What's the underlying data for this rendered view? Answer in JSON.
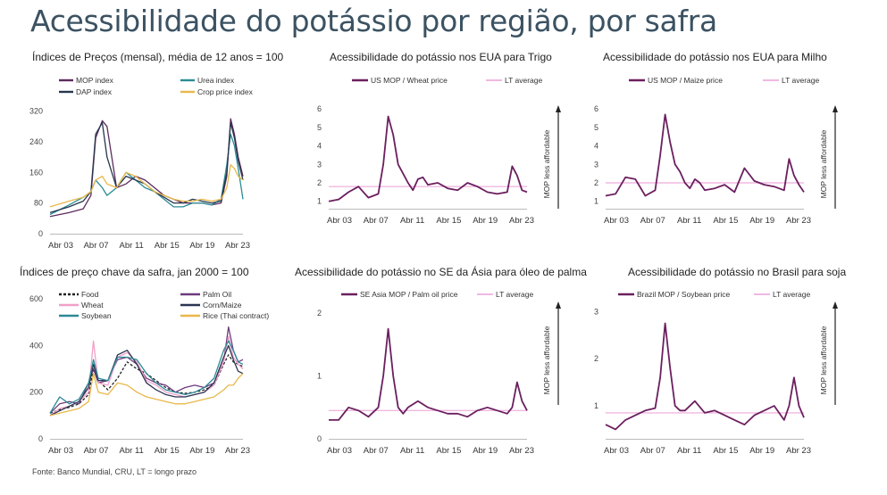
{
  "page": {
    "title": "Acessibilidade do potássio por região, por safra",
    "source": "Fonte: Banco Mundial, CRU, LT = longo prazo"
  },
  "chart_data": [
    {
      "id": "c1",
      "type": "line",
      "title": "Índices de Preços (mensal), média de 12 anos = 100",
      "x_ticks": [
        "Abr 03",
        "Abr 07",
        "Abr 11",
        "Abr 15",
        "Abr 19",
        "Abr 23"
      ],
      "y_ticks": [
        "0",
        "80",
        "160",
        "240",
        "320"
      ],
      "ylim": [
        0,
        340
      ],
      "grid": false,
      "x": [
        0,
        2,
        3.5,
        4.3,
        4.8,
        5.5,
        6,
        7,
        8,
        9,
        10,
        11,
        12,
        13,
        14,
        15,
        16,
        17,
        18,
        18.6,
        19,
        19.4,
        19.8,
        20.3
      ],
      "series": [
        {
          "name": "MOP index",
          "color": "#5c2a5e",
          "values": [
            45,
            55,
            65,
            100,
            250,
            295,
            280,
            120,
            130,
            150,
            140,
            120,
            100,
            90,
            80,
            80,
            80,
            75,
            80,
            150,
            300,
            260,
            200,
            150
          ]
        },
        {
          "name": "Urea index",
          "color": "#2a8c96",
          "values": [
            50,
            75,
            95,
            110,
            140,
            120,
            100,
            120,
            160,
            140,
            120,
            110,
            90,
            70,
            70,
            80,
            80,
            75,
            90,
            180,
            260,
            230,
            170,
            90
          ]
        },
        {
          "name": "DAP index",
          "color": "#27374d",
          "values": [
            55,
            70,
            85,
            110,
            260,
            290,
            200,
            120,
            150,
            140,
            130,
            110,
            95,
            80,
            80,
            90,
            85,
            80,
            85,
            160,
            290,
            250,
            190,
            140
          ]
        },
        {
          "name": "Crop price index",
          "color": "#e8b84a",
          "values": [
            70,
            85,
            95,
            110,
            140,
            150,
            130,
            120,
            160,
            150,
            130,
            110,
            100,
            90,
            85,
            85,
            90,
            85,
            90,
            120,
            180,
            170,
            150,
            140
          ]
        }
      ]
    },
    {
      "id": "c2",
      "type": "line",
      "title": "Acessibilidade do potássio nos EUA para Trigo",
      "x_ticks": [
        "Abr 03",
        "Abr 07",
        "Abr 11",
        "Abr 15",
        "Abr 19",
        "Abr 23"
      ],
      "y_ticks": [
        "1",
        "2",
        "3",
        "4",
        "5",
        "6"
      ],
      "ylim": [
        0.6,
        6.3
      ],
      "grid": false,
      "side_label": "MOP less affordable",
      "x": [
        0,
        1,
        2,
        3,
        4,
        5,
        5.5,
        6,
        6.5,
        7,
        7.5,
        8,
        8.5,
        9,
        9.5,
        10,
        11,
        12,
        13,
        14,
        15,
        16,
        17,
        18,
        18.5,
        19,
        19.5,
        20
      ],
      "series": [
        {
          "name": "US MOP / Wheat price",
          "color": "#6b1f5f",
          "values": [
            1.0,
            1.1,
            1.5,
            1.8,
            1.2,
            1.4,
            3.0,
            5.6,
            4.6,
            3.0,
            2.5,
            2.0,
            1.6,
            2.2,
            2.3,
            1.9,
            2.0,
            1.7,
            1.6,
            2.0,
            1.8,
            1.5,
            1.4,
            1.5,
            2.9,
            2.4,
            1.6,
            1.5
          ]
        },
        {
          "name": "LT average",
          "color": "#f0b8e0",
          "values": [
            1.8,
            1.8,
            1.8,
            1.8,
            1.8,
            1.8,
            1.8,
            1.8,
            1.8,
            1.8,
            1.8,
            1.8,
            1.8,
            1.8,
            1.8,
            1.8,
            1.8,
            1.8,
            1.8,
            1.8,
            1.8,
            1.8,
            1.8,
            1.8,
            1.8,
            1.8,
            1.8,
            1.8
          ]
        }
      ]
    },
    {
      "id": "c3",
      "type": "line",
      "title": "Acessibilidade do potássio nos EUA para Milho",
      "x_ticks": [
        "Abr 03",
        "Abr 07",
        "Abr 11",
        "Abr 15",
        "Abr 19",
        "Abr 23"
      ],
      "y_ticks": [
        "1",
        "2",
        "3",
        "4",
        "5",
        "6"
      ],
      "ylim": [
        0.6,
        6.3
      ],
      "grid": false,
      "side_label": "MOP less affordable",
      "x": [
        0,
        1,
        2,
        3,
        4,
        5,
        5.5,
        6,
        6.5,
        7,
        7.5,
        8,
        8.5,
        9,
        9.5,
        10,
        11,
        12,
        13,
        14,
        15,
        16,
        17,
        18,
        18.5,
        19,
        19.5,
        20
      ],
      "series": [
        {
          "name": "US MOP / Maize price",
          "color": "#6b1f5f",
          "values": [
            1.3,
            1.4,
            2.3,
            2.2,
            1.3,
            1.6,
            3.5,
            5.7,
            4.2,
            3.0,
            2.6,
            2.0,
            1.7,
            2.2,
            2.0,
            1.6,
            1.7,
            1.9,
            1.5,
            2.8,
            2.1,
            1.9,
            1.8,
            1.6,
            3.3,
            2.4,
            1.9,
            1.5
          ]
        },
        {
          "name": "LT average",
          "color": "#f0b8e0",
          "values": [
            2.0,
            2.0,
            2.0,
            2.0,
            2.0,
            2.0,
            2.0,
            2.0,
            2.0,
            2.0,
            2.0,
            2.0,
            2.0,
            2.0,
            2.0,
            2.0,
            2.0,
            2.0,
            2.0,
            2.0,
            2.0,
            2.0,
            2.0,
            2.0,
            2.0,
            2.0,
            2.0,
            2.0
          ]
        }
      ]
    },
    {
      "id": "c4",
      "type": "line",
      "title": "Índices de preço chave da safra, jan 2000 = 100",
      "x_ticks": [
        "Abr 03",
        "Abr 07",
        "Abr 11",
        "Abr 15",
        "Abr 19",
        "Abr 23"
      ],
      "y_ticks": [
        "0",
        "200",
        "400",
        "600"
      ],
      "ylim": [
        0,
        620
      ],
      "grid": false,
      "x": [
        0,
        1,
        2,
        3,
        4,
        4.5,
        5,
        6,
        7,
        8,
        9,
        10,
        11,
        12,
        13,
        14,
        15,
        16,
        17,
        18,
        18.5,
        19,
        19.5,
        20
      ],
      "series": [
        {
          "name": "Food",
          "color": "#222222",
          "values": [
            110,
            125,
            135,
            150,
            190,
            300,
            250,
            210,
            260,
            330,
            300,
            280,
            250,
            220,
            200,
            195,
            200,
            210,
            230,
            320,
            360,
            330,
            320,
            310
          ]
        },
        {
          "name": "Palm Oil",
          "color": "#6f3a7e",
          "values": [
            110,
            150,
            160,
            150,
            240,
            300,
            240,
            250,
            340,
            350,
            320,
            260,
            240,
            230,
            200,
            220,
            230,
            220,
            240,
            330,
            480,
            380,
            330,
            340
          ]
        },
        {
          "name": "Wheat",
          "color": "#f0a0c8",
          "values": [
            100,
            130,
            140,
            160,
            200,
            420,
            240,
            230,
            350,
            370,
            330,
            250,
            230,
            200,
            190,
            180,
            190,
            200,
            230,
            330,
            440,
            350,
            320,
            300
          ]
        },
        {
          "name": "Corn/Maize",
          "color": "#2b3552",
          "values": [
            100,
            120,
            140,
            160,
            220,
            320,
            250,
            250,
            360,
            380,
            320,
            240,
            210,
            190,
            180,
            180,
            190,
            200,
            240,
            350,
            400,
            340,
            290,
            280
          ]
        },
        {
          "name": "Soybean",
          "color": "#2e8a96",
          "values": [
            110,
            180,
            150,
            170,
            240,
            340,
            260,
            250,
            350,
            350,
            340,
            280,
            240,
            210,
            200,
            190,
            200,
            220,
            260,
            380,
            420,
            380,
            330,
            320
          ]
        },
        {
          "name": "Rice (Thai contract)",
          "color": "#e8b84a",
          "values": [
            100,
            110,
            120,
            130,
            160,
            280,
            200,
            190,
            240,
            230,
            200,
            180,
            170,
            160,
            150,
            150,
            160,
            170,
            180,
            210,
            230,
            230,
            260,
            280
          ]
        }
      ]
    },
    {
      "id": "c5",
      "type": "line",
      "title": "Acessibilidade do potássio no SE da Ásia para óleo de palma",
      "x_ticks": [
        "Abr 03",
        "Abr 07",
        "Abr 11",
        "Abr 15",
        "Abr 19",
        "Abr 23"
      ],
      "y_ticks": [
        "0",
        "1",
        "2"
      ],
      "ylim": [
        0,
        2.1
      ],
      "grid": false,
      "side_label": "MOP less affordable",
      "x": [
        0,
        1,
        2,
        3,
        4,
        5,
        5.5,
        6,
        6.5,
        7,
        7.5,
        8,
        9,
        10,
        11,
        12,
        13,
        14,
        15,
        16,
        17,
        18,
        18.5,
        19,
        19.5,
        20
      ],
      "series": [
        {
          "name": "SE Asia MOP / Palm oil price",
          "color": "#6b1f5f",
          "values": [
            0.3,
            0.3,
            0.5,
            0.45,
            0.35,
            0.5,
            1.0,
            1.75,
            1.0,
            0.5,
            0.4,
            0.5,
            0.6,
            0.5,
            0.45,
            0.4,
            0.4,
            0.35,
            0.45,
            0.5,
            0.45,
            0.4,
            0.5,
            0.9,
            0.6,
            0.45
          ]
        },
        {
          "name": "LT average",
          "color": "#f0b8e0",
          "values": [
            0.45,
            0.45,
            0.45,
            0.45,
            0.45,
            0.45,
            0.45,
            0.45,
            0.45,
            0.45,
            0.45,
            0.45,
            0.45,
            0.45,
            0.45,
            0.45,
            0.45,
            0.45,
            0.45,
            0.45,
            0.45,
            0.45,
            0.45,
            0.45,
            0.45,
            0.45
          ]
        }
      ]
    },
    {
      "id": "c6",
      "type": "line",
      "title": "Acessibilidade do potássio no Brasil para soja",
      "x_ticks": [
        "Abr 03",
        "Abr 07",
        "Abr 11",
        "Abr 15",
        "Abr 19",
        "Abr 23"
      ],
      "y_ticks": [
        "1",
        "2",
        "3"
      ],
      "ylim": [
        0.3,
        3.1
      ],
      "grid": false,
      "side_label": "MOP less affordable",
      "x": [
        0,
        1,
        2,
        3,
        4,
        5,
        5.5,
        6,
        6.5,
        7,
        7.5,
        8,
        9,
        10,
        11,
        12,
        13,
        14,
        15,
        16,
        17,
        18,
        18.5,
        19,
        19.5,
        20
      ],
      "series": [
        {
          "name": "Brazil MOP / Soybean price",
          "color": "#6b1f5f",
          "values": [
            0.6,
            0.5,
            0.7,
            0.8,
            0.9,
            0.95,
            1.6,
            2.75,
            1.8,
            1.0,
            0.9,
            0.9,
            1.1,
            0.85,
            0.9,
            0.8,
            0.7,
            0.6,
            0.8,
            0.9,
            1.0,
            0.7,
            1.0,
            1.6,
            1.0,
            0.75
          ]
        },
        {
          "name": "LT average",
          "color": "#f0b8e0",
          "values": [
            0.85,
            0.85,
            0.85,
            0.85,
            0.85,
            0.85,
            0.85,
            0.85,
            0.85,
            0.85,
            0.85,
            0.85,
            0.85,
            0.85,
            0.85,
            0.85,
            0.85,
            0.85,
            0.85,
            0.85,
            0.85,
            0.85,
            0.85,
            0.85,
            0.85,
            0.85
          ]
        }
      ]
    }
  ]
}
